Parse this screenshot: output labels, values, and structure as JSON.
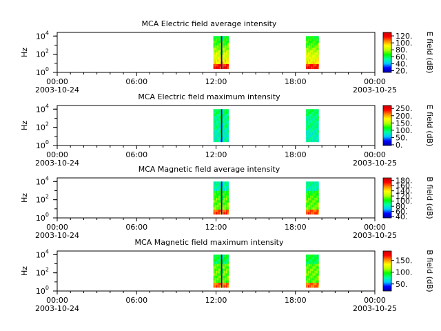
{
  "chart_data": [
    {
      "type": "heatmap",
      "title": "MCA  Electric field average intensity",
      "ylabel": "Hz",
      "colorbar_label": "E field (dB)",
      "colorbar_ticks": [
        "120.",
        "100.",
        "80.",
        "60.",
        "40.",
        "20."
      ],
      "colorbar_range": [
        15,
        130
      ],
      "x_ticks": [
        "00:00",
        "06:00",
        "12:00",
        "18:00",
        "00:00"
      ],
      "x_tick_dates": [
        "2003-10-24",
        "",
        "",
        "",
        "2003-10-25"
      ],
      "x_range_hours": [
        0,
        24
      ],
      "y_ticks": [
        "10",
        "10",
        "10"
      ],
      "y_tick_exponents": [
        "0",
        "2",
        "4"
      ],
      "y_log_range": [
        0,
        4.4
      ],
      "segments": [
        {
          "start_hour": 11.8,
          "end_hour": 12.95,
          "freq_log_min": 0.4,
          "freq_log_max": 4.0,
          "style": "bright_e_avg"
        },
        {
          "start_hour": 18.8,
          "end_hour": 19.75,
          "freq_log_min": 0.4,
          "freq_log_max": 4.0,
          "style": "bright_e_avg"
        }
      ]
    },
    {
      "type": "heatmap",
      "title": "MCA  Electric field maximum intensity",
      "ylabel": "Hz",
      "colorbar_label": "E field (dB)",
      "colorbar_ticks": [
        "250.",
        "200.",
        "150.",
        "100.",
        "50.",
        "0."
      ],
      "colorbar_range": [
        -5,
        270
      ],
      "x_ticks": [
        "00:00",
        "06:00",
        "12:00",
        "18:00",
        "00:00"
      ],
      "x_tick_dates": [
        "2003-10-24",
        "",
        "",
        "",
        "2003-10-25"
      ],
      "x_range_hours": [
        0,
        24
      ],
      "y_ticks": [
        "10",
        "10",
        "10"
      ],
      "y_tick_exponents": [
        "0",
        "2",
        "4"
      ],
      "y_log_range": [
        0,
        4.4
      ],
      "segments": [
        {
          "start_hour": 11.8,
          "end_hour": 12.95,
          "freq_log_min": 0.4,
          "freq_log_max": 4.0,
          "style": "cool_e_max"
        },
        {
          "start_hour": 18.8,
          "end_hour": 19.75,
          "freq_log_min": 0.4,
          "freq_log_max": 4.0,
          "style": "cool_e_max"
        }
      ]
    },
    {
      "type": "heatmap",
      "title": "MCA  Magnetic field average intensity",
      "ylabel": "Hz",
      "colorbar_label": "B field (dB)",
      "colorbar_ticks": [
        "180.",
        "160.",
        "140.",
        "120.",
        "100.",
        "80.",
        "60.",
        "40."
      ],
      "colorbar_range": [
        35,
        190
      ],
      "x_ticks": [
        "00:00",
        "06:00",
        "12:00",
        "18:00",
        "00:00"
      ],
      "x_tick_dates": [
        "2003-10-24",
        "",
        "",
        "",
        "2003-10-25"
      ],
      "x_range_hours": [
        0,
        24
      ],
      "y_ticks": [
        "10",
        "10",
        "10"
      ],
      "y_tick_exponents": [
        "0",
        "2",
        "4"
      ],
      "y_log_range": [
        0,
        4.4
      ],
      "segments": [
        {
          "start_hour": 11.8,
          "end_hour": 12.95,
          "freq_log_min": 0.4,
          "freq_log_max": 4.0,
          "style": "mag_avg"
        },
        {
          "start_hour": 18.8,
          "end_hour": 19.75,
          "freq_log_min": 0.4,
          "freq_log_max": 4.0,
          "style": "mag_avg"
        }
      ]
    },
    {
      "type": "heatmap",
      "title": "MCA  Magnetic field maximum intensity",
      "ylabel": "Hz",
      "colorbar_label": "B field (dB)",
      "colorbar_ticks": [
        "150.",
        "100.",
        "50."
      ],
      "colorbar_range": [
        20,
        190
      ],
      "x_ticks": [
        "00:00",
        "06:00",
        "12:00",
        "18:00",
        "00:00"
      ],
      "x_tick_dates": [
        "2003-10-24",
        "",
        "",
        "",
        "2003-10-25"
      ],
      "x_range_hours": [
        0,
        24
      ],
      "y_ticks": [
        "10",
        "10",
        "10"
      ],
      "y_tick_exponents": [
        "0",
        "2",
        "4"
      ],
      "y_log_range": [
        0,
        4.4
      ],
      "segments": [
        {
          "start_hour": 11.8,
          "end_hour": 12.95,
          "freq_log_min": 0.4,
          "freq_log_max": 4.0,
          "style": "mag_max"
        },
        {
          "start_hour": 18.8,
          "end_hour": 19.75,
          "freq_log_min": 0.4,
          "freq_log_max": 4.0,
          "style": "mag_max"
        }
      ]
    }
  ],
  "colormap": [
    "#0000a0",
    "#0000ff",
    "#00c8ff",
    "#00ffa0",
    "#00ff00",
    "#b4ff00",
    "#ffff00",
    "#ff8c00",
    "#ff0000",
    "#c80000"
  ]
}
